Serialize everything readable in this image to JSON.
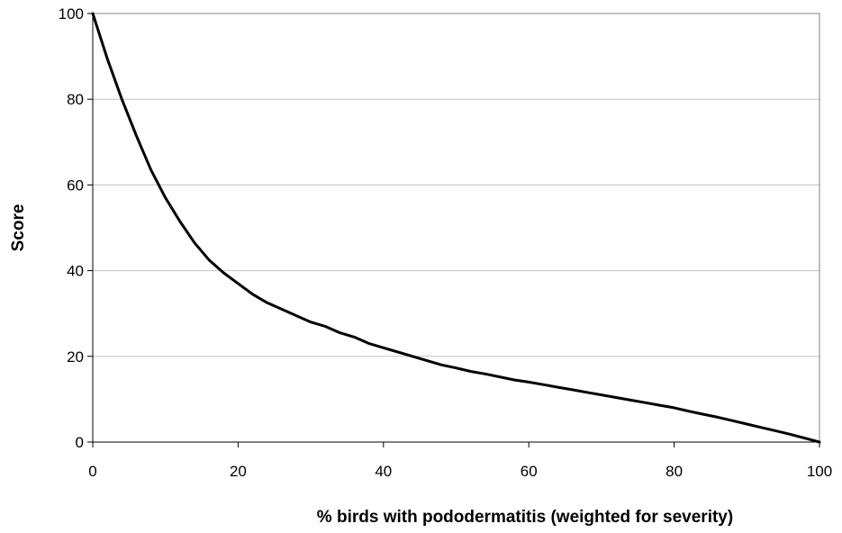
{
  "chart_data": {
    "type": "line",
    "title": "",
    "xlabel": "% birds with pododermatitis (weighted for severity)",
    "ylabel": "Score",
    "xlim": [
      0,
      100
    ],
    "ylim": [
      0,
      100
    ],
    "x_ticks": [
      "0",
      "20",
      "40",
      "60",
      "80",
      "100"
    ],
    "y_ticks": [
      "0",
      "20",
      "40",
      "60",
      "80",
      "100"
    ],
    "grid": "horizontal",
    "legend": "none",
    "series": [
      {
        "color": "#000000",
        "x": [
          0,
          2,
          4,
          6,
          8,
          10,
          12,
          14,
          16,
          18,
          20,
          22,
          24,
          26,
          28,
          30,
          32,
          34,
          36,
          38,
          40,
          42,
          44,
          46,
          48,
          50,
          52,
          54,
          56,
          58,
          60,
          62,
          64,
          66,
          68,
          70,
          72,
          74,
          76,
          78,
          80,
          82,
          84,
          86,
          88,
          90,
          92,
          94,
          96,
          98,
          100
        ],
        "y": [
          100,
          89.5,
          80,
          71.5,
          63.5,
          57,
          51.5,
          46.5,
          42.5,
          39.5,
          37,
          34.5,
          32.5,
          31,
          29.5,
          28,
          27,
          25.5,
          24.5,
          23,
          22,
          21,
          20,
          19,
          18,
          17.3,
          16.5,
          15.9,
          15.2,
          14.5,
          14,
          13.4,
          12.8,
          12.2,
          11.6,
          11,
          10.4,
          9.8,
          9.2,
          8.6,
          8,
          7.2,
          6.5,
          5.8,
          5,
          4.2,
          3.4,
          2.6,
          1.8,
          0.9,
          0
        ]
      }
    ]
  }
}
